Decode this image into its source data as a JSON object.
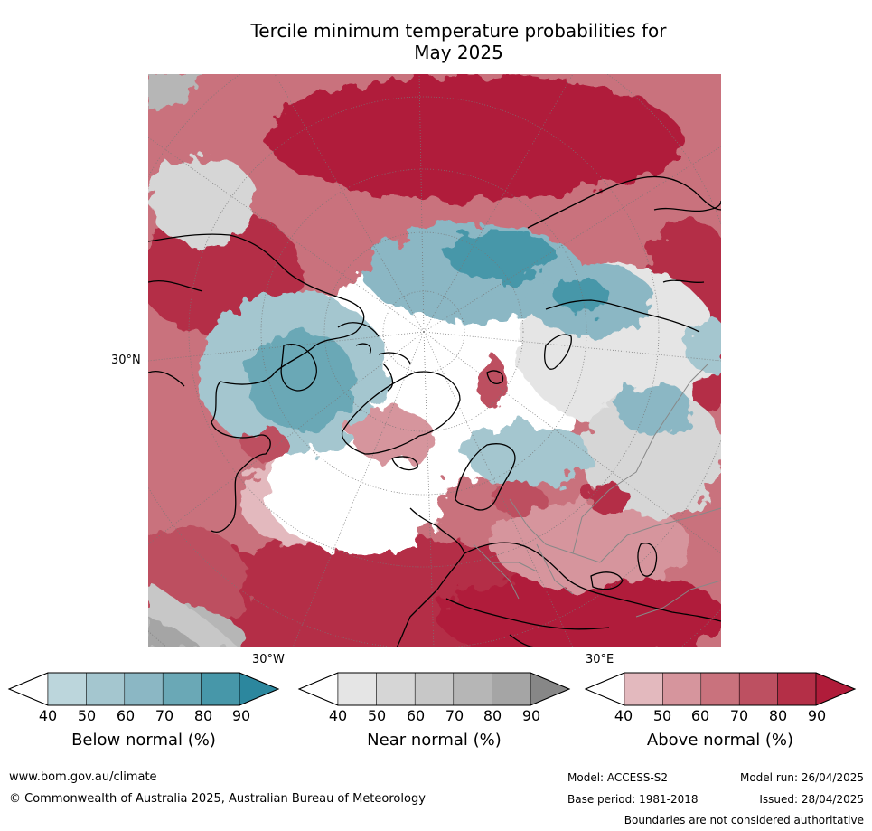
{
  "title": {
    "line1": "Tercile minimum temperature probabilities for",
    "line2": "May 2025"
  },
  "map": {
    "projection": "north-polar-stereographic",
    "region": "Northern Hemisphere / Europe",
    "lat_label": "30°N",
    "lon_labels": [
      "30°W",
      "30°E"
    ],
    "colors": {
      "above": [
        "#e3b9be",
        "#d6959d",
        "#c9727d",
        "#bd5061",
        "#b42f47",
        "#b01c3a"
      ],
      "below": [
        "#bcd6dc",
        "#a4c6cf",
        "#8bb7c4",
        "#6aa8b6",
        "#4797a9",
        "#2c879e"
      ],
      "near": [
        "#e5e5e5",
        "#d6d6d6",
        "#c7c7c7",
        "#b6b6b6",
        "#a5a5a5",
        "#878787"
      ]
    }
  },
  "colorbars": [
    {
      "id": "below",
      "label": "Below normal (%)",
      "ticks": [
        "40",
        "50",
        "60",
        "70",
        "80",
        "90"
      ],
      "colors": [
        "#ffffff",
        "#bcd6dc",
        "#a4c6cf",
        "#8bb7c4",
        "#6aa8b6",
        "#4797a9",
        "#2c879e"
      ]
    },
    {
      "id": "near",
      "label": "Near normal (%)",
      "ticks": [
        "40",
        "50",
        "60",
        "70",
        "80",
        "90"
      ],
      "colors": [
        "#ffffff",
        "#e5e5e5",
        "#d6d6d6",
        "#c7c7c7",
        "#b6b6b6",
        "#a5a5a5",
        "#878787"
      ]
    },
    {
      "id": "above",
      "label": "Above normal (%)",
      "ticks": [
        "40",
        "50",
        "60",
        "70",
        "80",
        "90"
      ],
      "colors": [
        "#ffffff",
        "#e3b9be",
        "#d6959d",
        "#c9727d",
        "#bd5061",
        "#b42f47",
        "#b01c3a"
      ]
    }
  ],
  "footer": {
    "website": "www.bom.gov.au/climate",
    "copyright": "© Commonwealth of Australia 2025, Australian Bureau of Meteorology",
    "model": "Model: ACCESS-S2",
    "model_run": "Model run: 26/04/2025",
    "base_period": "Base period: 1981-2018",
    "issued": "Issued: 28/04/2025",
    "disclaimer": "Boundaries are not considered authoritative"
  }
}
